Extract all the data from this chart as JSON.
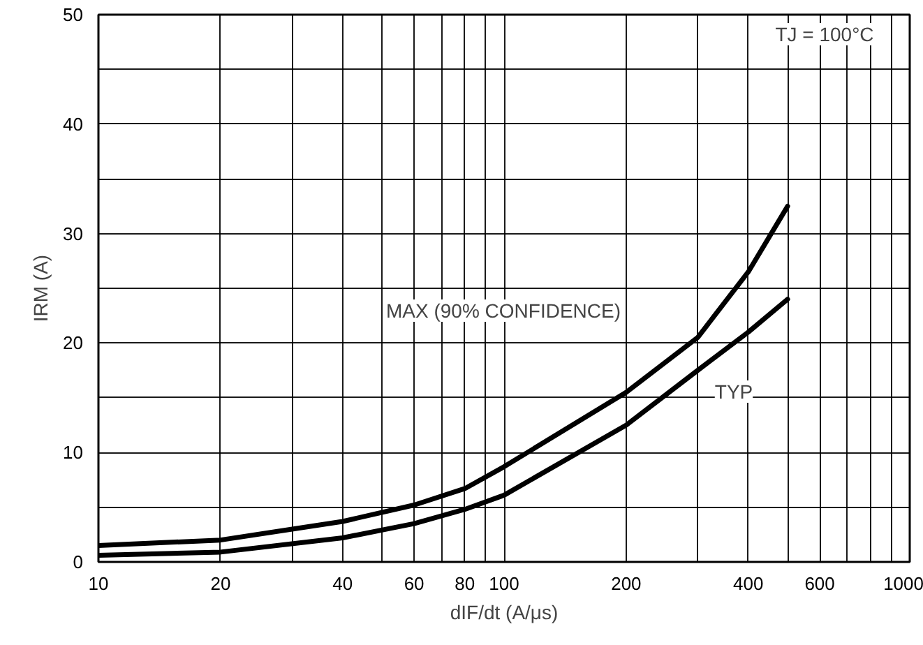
{
  "chart_data": {
    "type": "line",
    "xlabel": "dIF/dt (A/μs)",
    "ylabel": "IRM (A)",
    "log": "x",
    "grid": true,
    "marker": "none",
    "line_style": "solid",
    "xlim": [
      10,
      1000
    ],
    "ylim": [
      0,
      50
    ],
    "xticks": [
      10,
      20,
      {
        "value": 30,
        "label": null
      },
      40,
      {
        "value": 50,
        "label": null
      },
      60,
      {
        "value": 70,
        "label": null
      },
      80,
      {
        "value": 90,
        "label": null
      },
      100,
      200,
      {
        "value": 300,
        "label": null
      },
      400,
      {
        "value": 500,
        "label": null
      },
      600,
      {
        "value": 700,
        "label": null
      },
      {
        "value": 800,
        "label": null
      },
      {
        "value": 900,
        "label": null
      },
      1000
    ],
    "yticks": [
      0,
      {
        "value": 5,
        "label": null
      },
      10,
      {
        "value": 15,
        "label": null
      },
      20,
      {
        "value": 25,
        "label": null
      },
      30,
      {
        "value": 35,
        "label": null
      },
      40,
      {
        "value": 45,
        "label": null
      },
      50
    ],
    "series": [
      {
        "color": "#000000",
        "x": [
          10,
          20,
          40,
          60,
          80,
          100,
          200,
          300,
          400,
          500
        ],
        "values": [
          1.5,
          2.0,
          3.7,
          5.2,
          6.7,
          8.7,
          15.5,
          20.5,
          26.5,
          32.5
        ]
      },
      {
        "color": "#000000",
        "x": [
          10,
          20,
          40,
          60,
          80,
          100,
          200,
          300,
          400,
          500
        ],
        "values": [
          0.6,
          0.9,
          2.2,
          3.5,
          4.8,
          6.1,
          12.5,
          17.5,
          21,
          24
        ]
      }
    ],
    "annotations": [
      "MAX (90% CONFIDENCE)",
      "TYP",
      "TJ = 100°C"
    ]
  }
}
